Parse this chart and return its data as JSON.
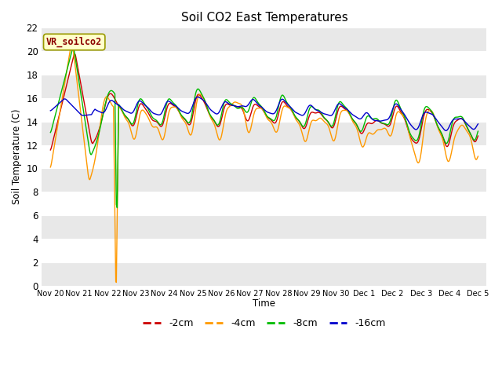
{
  "title": "Soil CO2 East Temperatures",
  "ylabel": "Soil Temperature (C)",
  "xlabel": "Time",
  "legend_title": "VR_soilco2",
  "ylim": [
    0,
    22
  ],
  "line_colors": {
    "-2cm": "#cc0000",
    "-4cm": "#ff9900",
    "-8cm": "#00bb00",
    "-16cm": "#0000cc"
  },
  "line_width": 1.0,
  "tick_labels": [
    "Nov 20",
    "Nov 21",
    "Nov 22",
    "Nov 23",
    "Nov 24",
    "Nov 25",
    "Nov 26",
    "Nov 27",
    "Nov 28",
    "Nov 29",
    "Nov 30",
    "Dec 1",
    "Dec 2",
    "Dec 3",
    "Dec 4",
    "Dec 5"
  ],
  "yticks": [
    0,
    2,
    4,
    6,
    8,
    10,
    12,
    14,
    16,
    18,
    20,
    22
  ]
}
